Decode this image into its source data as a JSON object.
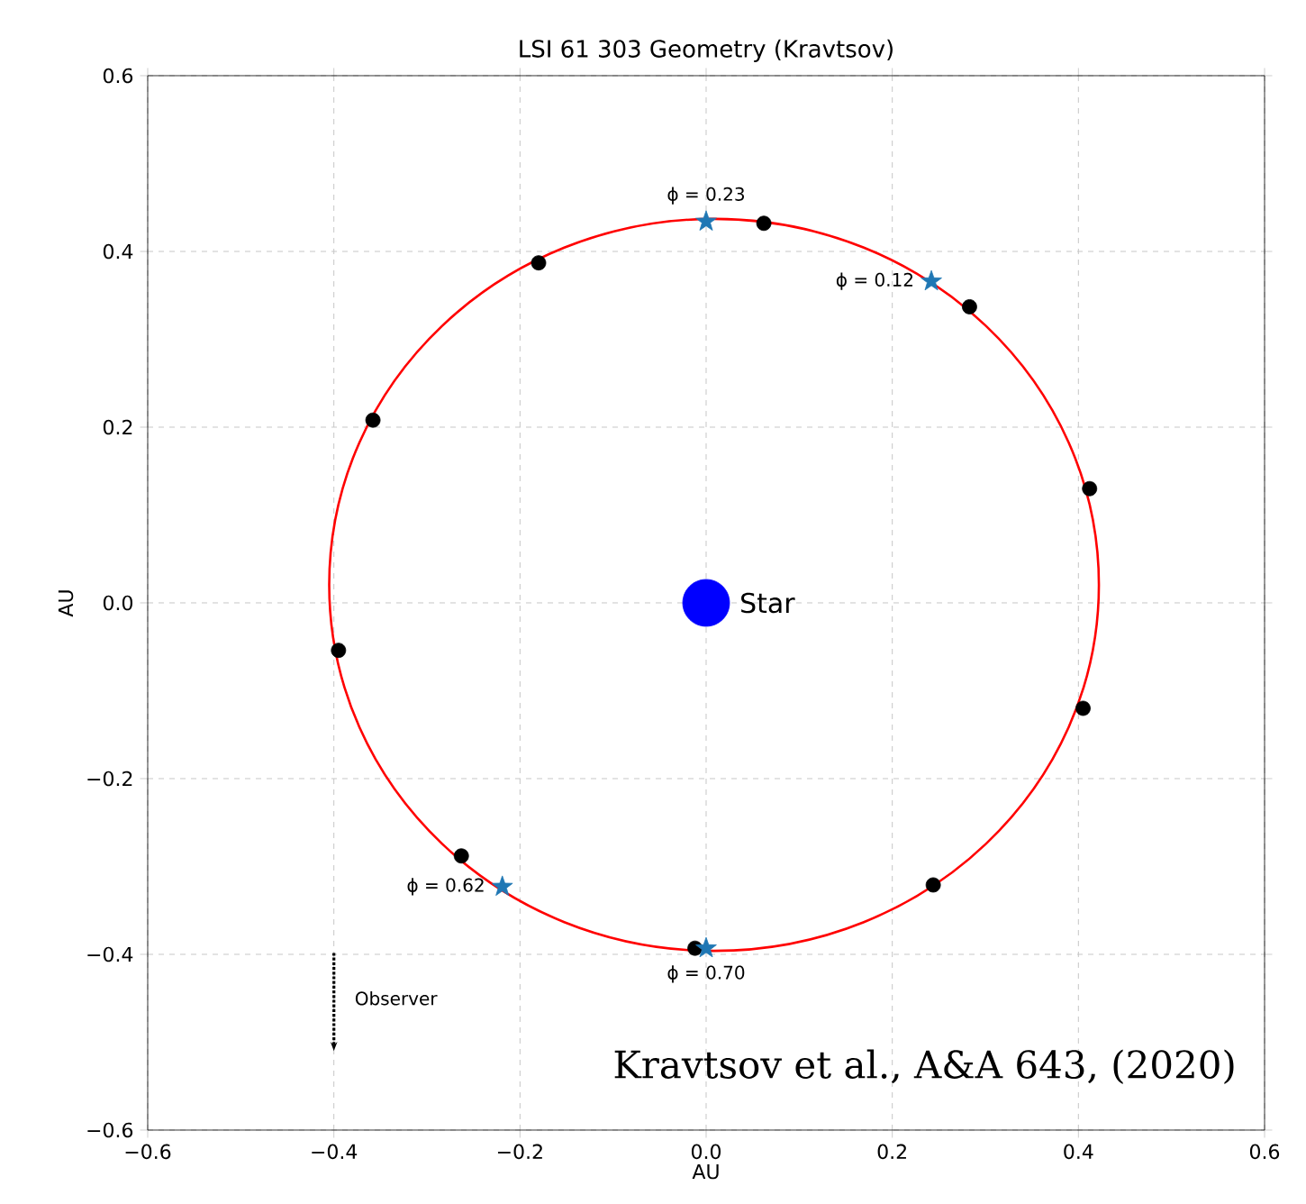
{
  "chart_data": {
    "type": "scatter",
    "title": "LSI 61 303 Geometry (Kravtsov)",
    "xlabel": "AU",
    "ylabel": "AU",
    "xlim": [
      -0.6,
      0.6
    ],
    "ylim": [
      -0.6,
      0.6
    ],
    "xticks": [
      {
        "value": -0.6,
        "label": "−0.6"
      },
      {
        "value": -0.4,
        "label": "−0.4"
      },
      {
        "value": -0.2,
        "label": "−0.2"
      },
      {
        "value": 0.0,
        "label": "0.0"
      },
      {
        "value": 0.2,
        "label": "0.2"
      },
      {
        "value": 0.4,
        "label": "0.4"
      },
      {
        "value": 0.6,
        "label": "0.6"
      }
    ],
    "yticks": [
      {
        "value": -0.6,
        "label": "−0.6"
      },
      {
        "value": -0.4,
        "label": "−0.4"
      },
      {
        "value": -0.2,
        "label": "−0.2"
      },
      {
        "value": 0.0,
        "label": "0.0"
      },
      {
        "value": 0.2,
        "label": "0.2"
      },
      {
        "value": 0.4,
        "label": "0.4"
      },
      {
        "value": 0.6,
        "label": "0.6"
      }
    ],
    "grid": true,
    "series": [
      {
        "type": "scatter",
        "color": "#000000",
        "marker": "circle",
        "x": [
          0.062,
          -0.18,
          -0.358,
          -0.395,
          -0.263,
          -0.012,
          0.244,
          0.283,
          0.412,
          0.405
        ],
        "values": [
          0.432,
          0.387,
          0.208,
          -0.054,
          -0.288,
          -0.393,
          -0.321,
          0.337,
          0.13,
          -0.12
        ]
      },
      {
        "type": "scatter",
        "color": "#1f77b4",
        "marker": "star",
        "x": [
          0.0,
          0.242,
          -0.219,
          0.0
        ],
        "values": [
          0.434,
          0.366,
          -0.323,
          -0.393
        ]
      },
      {
        "type": "scatter",
        "name": "Star",
        "color": "#0000ff",
        "marker": "circle",
        "x": [
          0.0
        ],
        "values": [
          0.0
        ]
      }
    ],
    "annotations": [
      {
        "text": "ϕ = 0.23",
        "x": 0.0,
        "y": 0.434
      },
      {
        "text": "ϕ = 0.12",
        "x": 0.242,
        "y": 0.366
      },
      {
        "text": "ϕ = 0.62",
        "x": -0.219,
        "y": -0.323
      },
      {
        "text": "ϕ = 0.70",
        "x": 0.0,
        "y": -0.393
      },
      "Observer",
      "Kravtsov et al.,  A&A 643, (2020)"
    ]
  }
}
